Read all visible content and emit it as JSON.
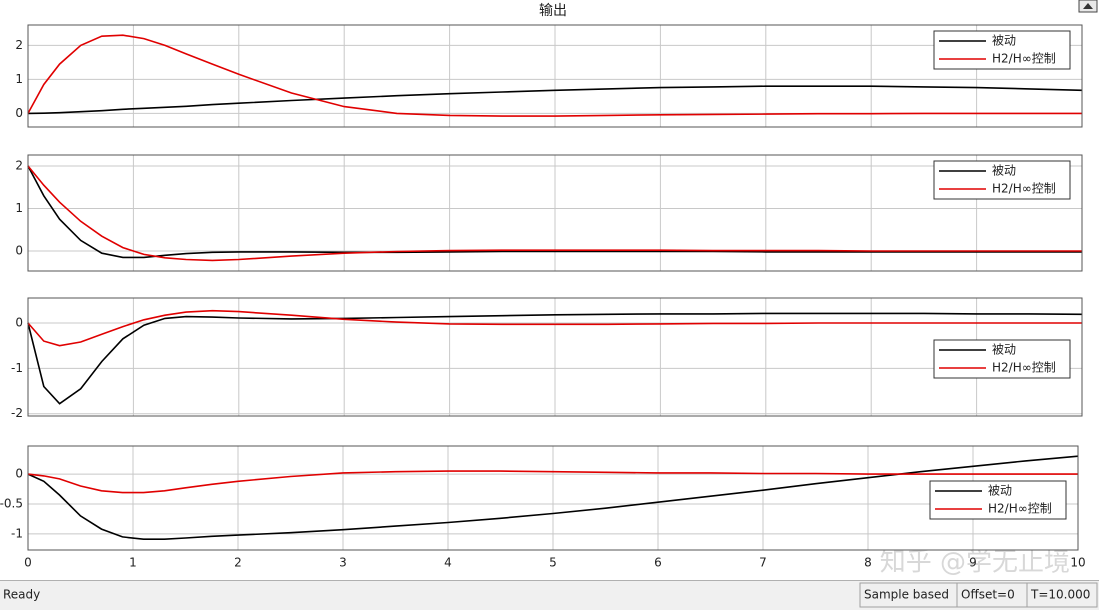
{
  "window": {
    "title": "输出",
    "status_left": "Ready",
    "status_boxes": [
      "Sample based",
      "Offset=0",
      "T=10.000"
    ],
    "watermark": "知乎 @学无止境"
  },
  "chart_data": [
    {
      "type": "line",
      "x": [
        0,
        0.15,
        0.3,
        0.5,
        0.7,
        0.9,
        1.1,
        1.3,
        1.5,
        1.75,
        2,
        2.5,
        3,
        3.5,
        4,
        4.5,
        5,
        5.5,
        6,
        6.5,
        7,
        7.5,
        8,
        8.5,
        9,
        9.5,
        10
      ],
      "xlim": [
        0,
        10
      ],
      "xticks": [
        0,
        1,
        2,
        3,
        4,
        5,
        6,
        7,
        8,
        9,
        10
      ],
      "xtick_labels": false,
      "ylim": [
        -0.4,
        2.6
      ],
      "yticks": [
        0,
        1,
        2
      ],
      "grid": true,
      "legend": "northeast",
      "series": [
        {
          "name": "被动",
          "color": "#000000",
          "values": [
            0,
            0.005,
            0.02,
            0.05,
            0.08,
            0.12,
            0.15,
            0.18,
            0.21,
            0.26,
            0.3,
            0.38,
            0.45,
            0.52,
            0.58,
            0.63,
            0.68,
            0.72,
            0.76,
            0.78,
            0.8,
            0.8,
            0.8,
            0.78,
            0.76,
            0.72,
            0.68
          ]
        },
        {
          "name": "H2/H∞控制",
          "color": "#e00000",
          "values": [
            0,
            0.85,
            1.45,
            2.0,
            2.27,
            2.3,
            2.2,
            2.0,
            1.75,
            1.45,
            1.15,
            0.6,
            0.2,
            0.0,
            -0.06,
            -0.08,
            -0.08,
            -0.06,
            -0.04,
            -0.03,
            -0.02,
            -0.01,
            -0.01,
            0,
            0,
            0,
            0
          ]
        }
      ]
    },
    {
      "type": "line",
      "x": [
        0,
        0.15,
        0.3,
        0.5,
        0.7,
        0.9,
        1.1,
        1.3,
        1.5,
        1.75,
        2,
        2.5,
        3,
        3.5,
        4,
        4.5,
        5,
        5.5,
        6,
        6.5,
        7,
        7.5,
        8,
        8.5,
        9,
        9.5,
        10
      ],
      "xlim": [
        0,
        10
      ],
      "xticks": [
        0,
        1,
        2,
        3,
        4,
        5,
        6,
        7,
        8,
        9,
        10
      ],
      "xtick_labels": false,
      "ylim": [
        -0.47,
        2.26
      ],
      "yticks": [
        0,
        1,
        2
      ],
      "grid": true,
      "legend": "northeast",
      "series": [
        {
          "name": "被动",
          "color": "#000000",
          "values": [
            2,
            1.3,
            0.75,
            0.25,
            -0.05,
            -0.15,
            -0.15,
            -0.1,
            -0.06,
            -0.03,
            -0.02,
            -0.02,
            -0.03,
            -0.03,
            -0.02,
            -0.01,
            -0.01,
            -0.01,
            -0.01,
            -0.01,
            -0.02,
            -0.02,
            -0.02,
            -0.02,
            -0.02,
            -0.02,
            -0.02
          ]
        },
        {
          "name": "H2/H∞控制",
          "color": "#e00000",
          "values": [
            2,
            1.55,
            1.15,
            0.7,
            0.35,
            0.08,
            -0.08,
            -0.16,
            -0.2,
            -0.22,
            -0.2,
            -0.12,
            -0.05,
            -0.01,
            0.01,
            0.02,
            0.02,
            0.02,
            0.02,
            0.01,
            0.01,
            0.01,
            0,
            0,
            0,
            0,
            0
          ]
        }
      ]
    },
    {
      "type": "line",
      "x": [
        0,
        0.15,
        0.3,
        0.5,
        0.7,
        0.9,
        1.1,
        1.3,
        1.5,
        1.75,
        2,
        2.5,
        3,
        3.5,
        4,
        4.5,
        5,
        5.5,
        6,
        6.5,
        7,
        7.5,
        8,
        8.5,
        9,
        9.5,
        10
      ],
      "xlim": [
        0,
        10
      ],
      "xticks": [
        0,
        1,
        2,
        3,
        4,
        5,
        6,
        7,
        8,
        9,
        10
      ],
      "xtick_labels": false,
      "ylim": [
        -2.05,
        0.55
      ],
      "yticks": [
        0,
        -1,
        -2
      ],
      "grid": true,
      "legend": "east",
      "series": [
        {
          "name": "被动",
          "color": "#000000",
          "values": [
            0,
            -1.4,
            -1.78,
            -1.45,
            -0.85,
            -0.35,
            -0.05,
            0.1,
            0.14,
            0.13,
            0.11,
            0.09,
            0.1,
            0.12,
            0.14,
            0.16,
            0.18,
            0.19,
            0.2,
            0.2,
            0.21,
            0.21,
            0.21,
            0.21,
            0.2,
            0.2,
            0.19
          ]
        },
        {
          "name": "H2/H∞控制",
          "color": "#e00000",
          "values": [
            0,
            -0.4,
            -0.5,
            -0.42,
            -0.25,
            -0.08,
            0.07,
            0.17,
            0.24,
            0.27,
            0.25,
            0.17,
            0.08,
            0.02,
            -0.02,
            -0.03,
            -0.03,
            -0.03,
            -0.02,
            -0.01,
            -0.01,
            0,
            0,
            0,
            0,
            0,
            0
          ]
        }
      ]
    },
    {
      "type": "line",
      "x": [
        0,
        0.15,
        0.3,
        0.5,
        0.7,
        0.9,
        1.1,
        1.3,
        1.5,
        1.75,
        2,
        2.5,
        3,
        3.5,
        4,
        4.5,
        5,
        5.5,
        6,
        6.5,
        7,
        7.5,
        8,
        8.5,
        9,
        9.5,
        10
      ],
      "xlim": [
        0,
        10
      ],
      "xticks": [
        0,
        1,
        2,
        3,
        4,
        5,
        6,
        7,
        8,
        9,
        10
      ],
      "xtick_labels": true,
      "ylim": [
        -1.27,
        0.47
      ],
      "yticks": [
        0,
        -0.5,
        -1
      ],
      "grid": true,
      "legend": "east",
      "series": [
        {
          "name": "被动",
          "color": "#000000",
          "values": [
            0,
            -0.12,
            -0.35,
            -0.7,
            -0.92,
            -1.05,
            -1.09,
            -1.09,
            -1.07,
            -1.04,
            -1.02,
            -0.98,
            -0.93,
            -0.87,
            -0.81,
            -0.74,
            -0.66,
            -0.57,
            -0.47,
            -0.37,
            -0.27,
            -0.16,
            -0.06,
            0.04,
            0.13,
            0.22,
            0.3
          ]
        },
        {
          "name": "H2/H∞控制",
          "color": "#e00000",
          "values": [
            0,
            -0.03,
            -0.08,
            -0.2,
            -0.28,
            -0.31,
            -0.31,
            -0.28,
            -0.23,
            -0.17,
            -0.12,
            -0.04,
            0.02,
            0.04,
            0.05,
            0.05,
            0.04,
            0.03,
            0.02,
            0.02,
            0.01,
            0.01,
            0,
            0,
            0,
            0,
            0
          ]
        }
      ]
    }
  ]
}
